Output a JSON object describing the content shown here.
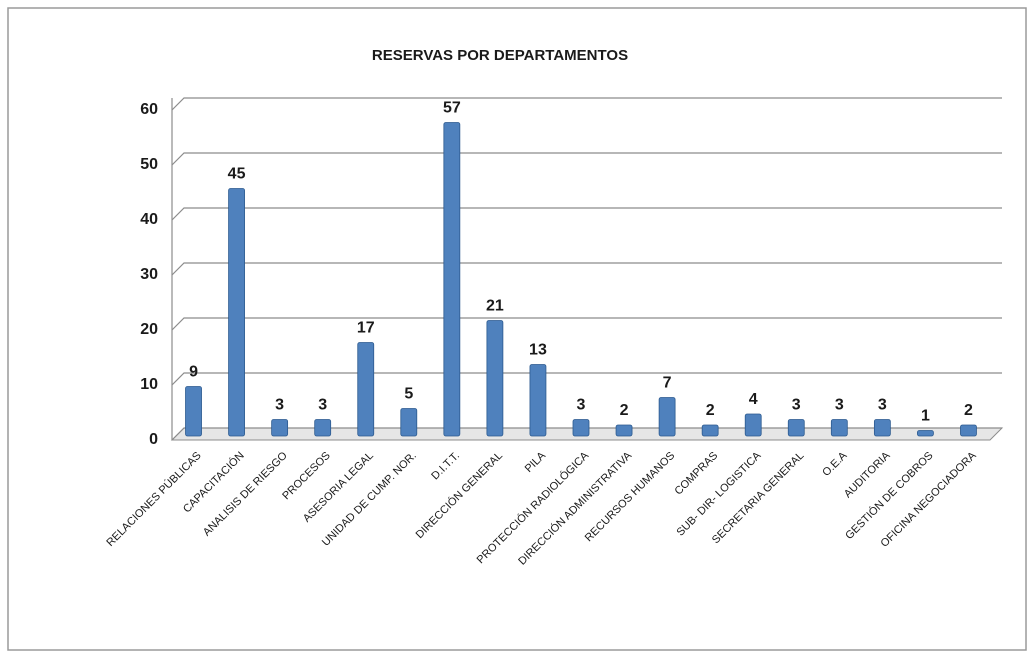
{
  "chart_data": {
    "type": "bar",
    "title": "RESERVAS POR DEPARTAMENTOS",
    "categories": [
      "RELACIONES PÚBLICAS",
      "CAPACITACIÓN",
      "ANALISIS DE RIESGO",
      "PROCESOS",
      "ASESORIA LEGAL",
      "UNIDAD DE CUMP. NOR.",
      "D.I.T.T.",
      "DIRECCIÓN GENERAL",
      "PILA",
      "PROTECCIÓN RADIOLÓGICA",
      "DIRECCIÓN ADMINISTRATIVA",
      "RECURSOS HUMANOS",
      "COMPRAS",
      "SUB- DIR- LOGISTICA",
      "SECRETARIA GENERAL",
      "O.E.A",
      "AUDITORIA",
      "GESTIÓN DE COBROS",
      "OFICINA NEGOCIADORA"
    ],
    "values": [
      9,
      45,
      3,
      3,
      17,
      5,
      57,
      21,
      13,
      3,
      2,
      7,
      2,
      4,
      3,
      3,
      3,
      1,
      2
    ],
    "color": "#4f81bd",
    "ylim": [
      0,
      60
    ],
    "yticks": [
      0,
      10,
      20,
      30,
      40,
      50,
      60
    ],
    "grid": true
  }
}
